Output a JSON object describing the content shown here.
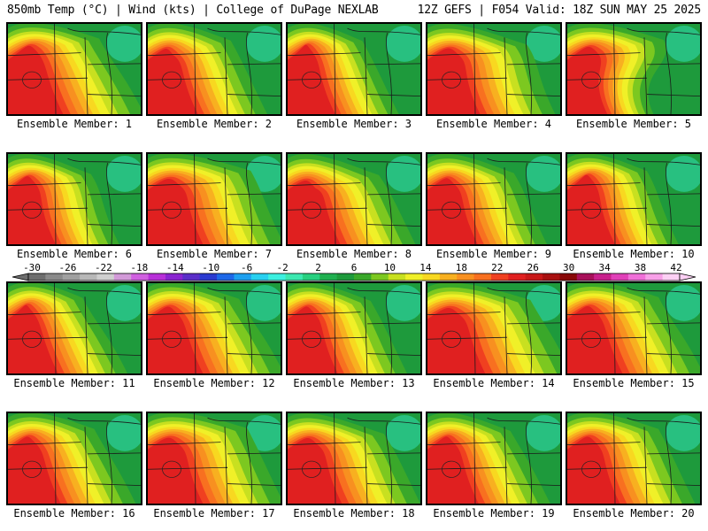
{
  "header": {
    "left": "850mb Temp (°C) | Wind (kts) | College of DuPage NEXLAB",
    "right": "12Z GEFS | F054 Valid: 18Z SUN MAY 25 2025"
  },
  "panels": [
    {
      "label": "Ensemble Member: 1"
    },
    {
      "label": "Ensemble Member: 2"
    },
    {
      "label": "Ensemble Member: 3"
    },
    {
      "label": "Ensemble Member: 4"
    },
    {
      "label": "Ensemble Member: 5"
    },
    {
      "label": "Ensemble Member: 6"
    },
    {
      "label": "Ensemble Member: 7"
    },
    {
      "label": "Ensemble Member: 8"
    },
    {
      "label": "Ensemble Member: 9"
    },
    {
      "label": "Ensemble Member: 10"
    },
    {
      "label": "Ensemble Member: 11"
    },
    {
      "label": "Ensemble Member: 12"
    },
    {
      "label": "Ensemble Member: 13"
    },
    {
      "label": "Ensemble Member: 14"
    },
    {
      "label": "Ensemble Member: 15"
    },
    {
      "label": "Ensemble Member: 16"
    },
    {
      "label": "Ensemble Member: 17"
    },
    {
      "label": "Ensemble Member: 18"
    },
    {
      "label": "Ensemble Member: 19"
    },
    {
      "label": "Ensemble Member: 20"
    }
  ],
  "colorbar": {
    "ticks": [
      "-30",
      "-26",
      "-22",
      "-18",
      "-14",
      "-10",
      "-6",
      "-2",
      "2",
      "6",
      "10",
      "14",
      "18",
      "22",
      "26",
      "30",
      "34",
      "38",
      "42"
    ],
    "colors": [
      "#6e6e6e",
      "#8a8a8a",
      "#a0a0a0",
      "#b8b8b8",
      "#cfcfcf",
      "#d29ad8",
      "#d060e0",
      "#b830d8",
      "#8a24d0",
      "#5a2ec8",
      "#2a3ad0",
      "#1e68e8",
      "#1ea0f0",
      "#28d0f0",
      "#3cf0e0",
      "#3ce8b0",
      "#28d080",
      "#20b050",
      "#1e9a3c",
      "#3aa82a",
      "#7cc820",
      "#c8e020",
      "#f0f028",
      "#f8d820",
      "#f8b020",
      "#f89020",
      "#f87020",
      "#f04020",
      "#e02020",
      "#c81818",
      "#a81010",
      "#880808",
      "#a8105a",
      "#c8208c",
      "#e040b8",
      "#f070d8",
      "#f8a0e8",
      "#fcd0f4"
    ]
  }
}
